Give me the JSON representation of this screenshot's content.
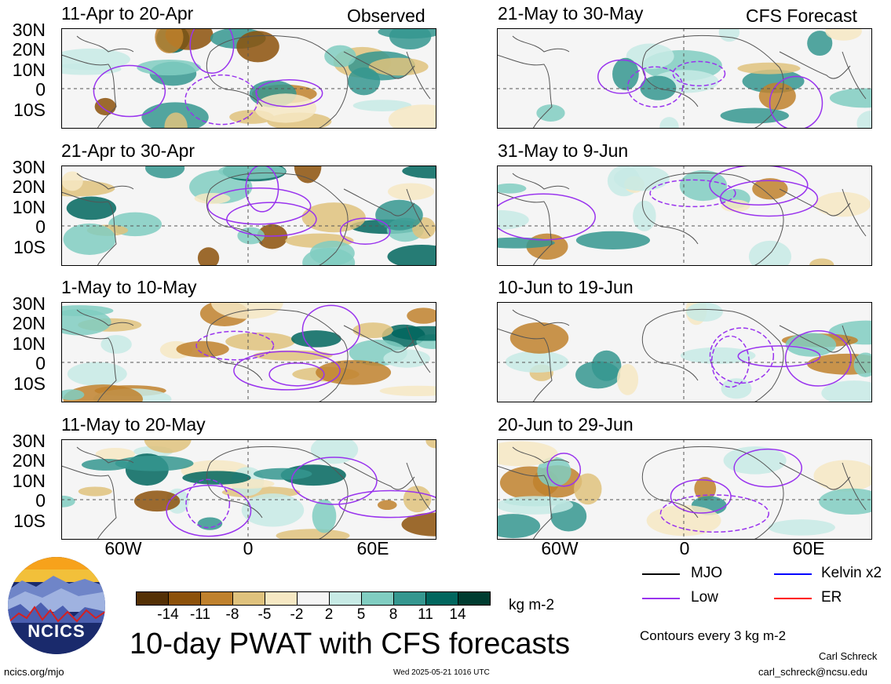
{
  "observed_label": "Observed",
  "forecast_label": "CFS Forecast",
  "lat_labels": [
    "30N",
    "20N",
    "10N",
    "0",
    "10S"
  ],
  "lon_labels": [
    "60W",
    "0",
    "60E"
  ],
  "observed_panels": [
    {
      "title": "11-Apr to 20-Apr"
    },
    {
      "title": "21-Apr to 30-Apr"
    },
    {
      "title": "1-May to 10-May"
    },
    {
      "title": "11-May to 20-May"
    }
  ],
  "forecast_panels": [
    {
      "title": "21-May to 30-May"
    },
    {
      "title": "31-May to 9-Jun"
    },
    {
      "title": "10-Jun to 19-Jun"
    },
    {
      "title": "20-Jun to 29-Jun"
    }
  ],
  "colorbar": {
    "colors": [
      "#543005",
      "#8c510a",
      "#bf812d",
      "#dfc27d",
      "#f6e8c3",
      "#f5f5f5",
      "#c7eae5",
      "#80cdc1",
      "#35978f",
      "#01665e",
      "#003c30"
    ],
    "ticks": [
      "-14",
      "-11",
      "-8",
      "-5",
      "-2",
      "2",
      "5",
      "8",
      "11",
      "14"
    ],
    "unit": "kg m-2"
  },
  "legend": {
    "items": [
      {
        "label": "MJO",
        "color": "#000000"
      },
      {
        "label": "Kelvin x2",
        "color": "#0000ff"
      },
      {
        "label": "Low",
        "color": "#9933ee"
      },
      {
        "label": "ER",
        "color": "#ff0000"
      }
    ],
    "contour_note": "Contours every 3 kg m-2"
  },
  "title": "10-day PWAT with CFS forecasts",
  "logo_text": "NCICS",
  "url": "ncics.org/mjo",
  "timestamp": "Wed 2025-05-21 1016 UTC",
  "author": "Carl Schreck",
  "email": "carl_schreck@ncsu.edu"
}
